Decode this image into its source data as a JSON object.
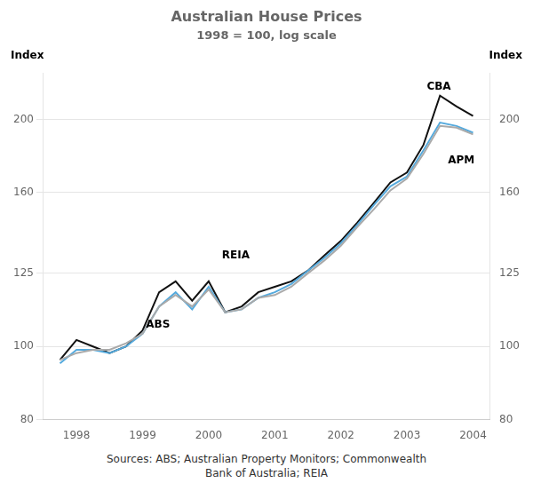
{
  "chart_data": {
    "type": "line",
    "title": "Australian House Prices",
    "subtitle": "1998 = 100, log scale",
    "source": "Sources: ABS; Australian Property Monitors; Commonwealth\nBank of Australia; REIA",
    "ylabel": "Index",
    "y2label": "Index",
    "log": "y",
    "grid": true,
    "xlim": [
      1997.5,
      2004.25
    ],
    "xticks": [
      1998,
      1999,
      2000,
      2001,
      2002,
      2003,
      2004
    ],
    "ylim": [
      80,
      230
    ],
    "yticks": [
      80,
      100,
      125,
      160,
      200
    ],
    "y2lim": [
      80,
      230
    ],
    "y2ticks": [
      80,
      100,
      125,
      160,
      200
    ],
    "x": [
      1997.75,
      1998.0,
      1998.25,
      1998.5,
      1998.75,
      1999.0,
      1999.25,
      1999.5,
      1999.75,
      2000.0,
      2000.25,
      2000.5,
      2000.75,
      2001.0,
      2001.25,
      2001.5,
      2001.75,
      2002.0,
      2002.25,
      2002.5,
      2002.75,
      2003.0,
      2003.25,
      2003.5,
      2003.75,
      2004.0
    ],
    "series": [
      {
        "name": "ABS",
        "color": "#aaaaaa",
        "values": [
          96,
          98,
          99,
          99,
          101,
          104,
          113,
          117,
          113,
          119,
          111,
          112,
          116,
          117,
          120,
          125,
          130,
          136,
          144,
          152,
          161,
          167,
          180,
          196,
          195,
          191
        ]
      },
      {
        "name": "APM",
        "color": "#55aadd",
        "values": [
          95,
          99,
          99,
          98,
          100,
          104,
          113,
          118,
          112,
          120,
          111,
          112,
          116,
          118,
          121,
          126,
          131,
          137,
          145,
          154,
          163,
          168,
          182,
          198,
          196,
          192
        ]
      },
      {
        "name": "CBA",
        "color": "#111111",
        "values": [
          96,
          102,
          100,
          98,
          100,
          105,
          118,
          122,
          115,
          122,
          111,
          113,
          118,
          120,
          122,
          126,
          132,
          138,
          146,
          155,
          165,
          170,
          185,
          215,
          208,
          202
        ]
      }
    ],
    "annotations": [
      {
        "text": "CBA",
        "x": 2003.3,
        "y": 219
      },
      {
        "text": "APM",
        "x": 2003.62,
        "y": 175
      },
      {
        "text": "ABS",
        "x": 1999.05,
        "y": 106
      },
      {
        "text": "REIA",
        "x": 2000.2,
        "y": 131
      }
    ]
  }
}
